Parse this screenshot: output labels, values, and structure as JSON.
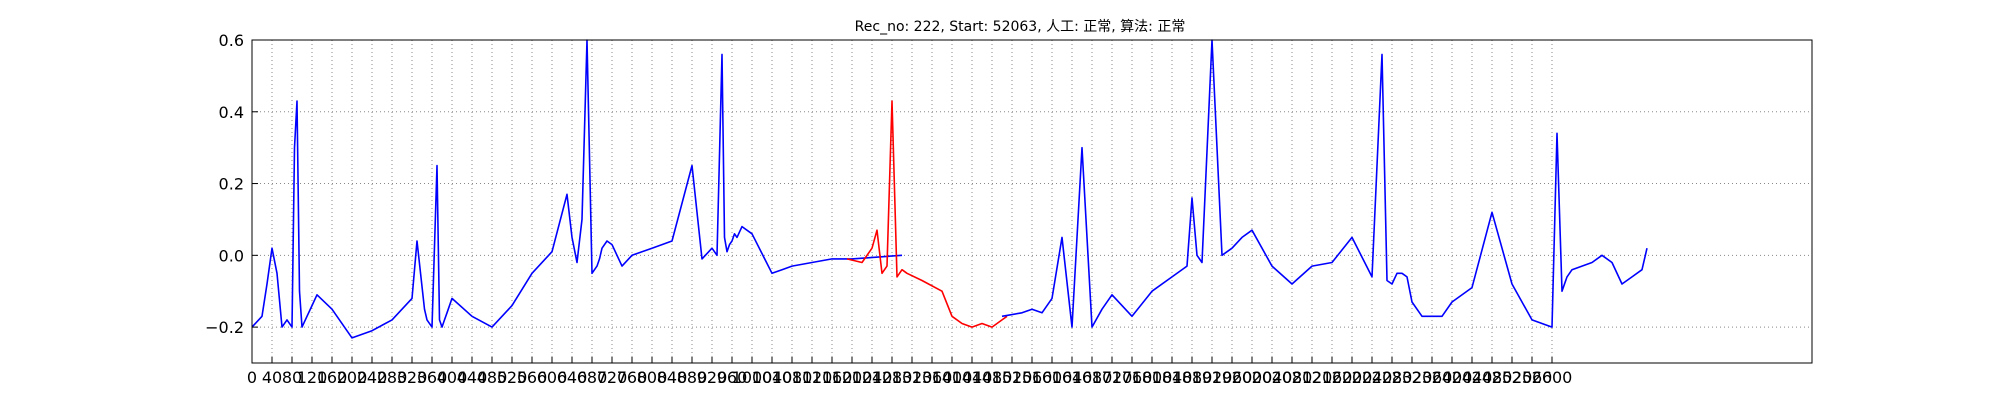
{
  "chart_data": {
    "type": "line",
    "title": "Rec_no: 222, Start: 52063, 人工: 正常, 算法: 正常",
    "xlabel": "",
    "ylabel": "",
    "xlim": [
      0,
      3120
    ],
    "ylim": [
      -0.3,
      0.6
    ],
    "grid": true,
    "grid_style": "dotted",
    "yticks": [
      -0.2,
      0.0,
      0.2,
      0.4,
      0.6
    ],
    "ytick_labels": [
      "−0.2",
      "0.0",
      "0.2",
      "0.4",
      "0.6"
    ],
    "xticks": [
      0,
      40,
      80,
      120,
      160,
      200,
      240,
      280,
      320,
      360,
      400,
      440,
      480,
      520,
      560,
      600,
      640,
      680,
      720,
      760,
      800,
      840,
      880,
      920,
      960,
      1000,
      1040,
      1080,
      1120,
      1160,
      1200,
      1240,
      1280,
      1320,
      1360,
      1400,
      1440,
      1480,
      1520,
      1560,
      1600,
      1640,
      1680,
      1720,
      1760,
      1800,
      1840,
      1880,
      1920,
      1960,
      2000,
      2040,
      2080,
      2120,
      2160,
      2200,
      2240,
      2280,
      2320,
      2360,
      2400,
      2440,
      2480,
      2520,
      2560,
      2600
    ],
    "series": [
      {
        "color": "#0000ff",
        "x": [
          0,
          20,
          30,
          40,
          50,
          60,
          70,
          80,
          85,
          90,
          95,
          100,
          110,
          120,
          130,
          160,
          200,
          240,
          280,
          320,
          330,
          345,
          350,
          360,
          370,
          375,
          380,
          385,
          390,
          400,
          440,
          480,
          520,
          560,
          600,
          630,
          640,
          650,
          660,
          670,
          680,
          690,
          695,
          700,
          710,
          720,
          740,
          760,
          780,
          800,
          840,
          880,
          900,
          920,
          930,
          940,
          945,
          950,
          955,
          960,
          965,
          970,
          980,
          1000,
          1040,
          1060,
          1080,
          1120,
          1160,
          1200,
          1300
        ],
        "y": [
          -0.2,
          -0.17,
          -0.08,
          0.02,
          -0.05,
          -0.2,
          -0.18,
          -0.2,
          0.3,
          0.43,
          -0.1,
          -0.2,
          -0.17,
          -0.14,
          -0.11,
          -0.15,
          -0.23,
          -0.21,
          -0.18,
          -0.12,
          0.04,
          -0.15,
          -0.18,
          -0.2,
          0.25,
          -0.18,
          -0.2,
          -0.18,
          -0.16,
          -0.12,
          -0.17,
          -0.2,
          -0.14,
          -0.05,
          0.01,
          0.17,
          0.05,
          -0.02,
          0.1,
          0.6,
          -0.05,
          -0.03,
          -0.01,
          0.02,
          0.04,
          0.03,
          -0.03,
          0.0,
          0.01,
          0.02,
          0.04,
          0.25,
          -0.01,
          0.02,
          0.0,
          0.56,
          0.05,
          0.01,
          0.03,
          0.04,
          0.06,
          0.05,
          0.08,
          0.06,
          -0.05,
          -0.04,
          -0.03,
          -0.02,
          -0.01,
          -0.01,
          0.0
        ]
      },
      {
        "color": "#ff0000",
        "x": [
          1190,
          1220,
          1240,
          1250,
          1260,
          1270,
          1280,
          1290,
          1295,
          1300,
          1310,
          1340,
          1380,
          1400,
          1420,
          1440,
          1460,
          1480,
          1500,
          1510
        ],
        "y": [
          -0.01,
          -0.02,
          0.02,
          0.07,
          -0.05,
          -0.03,
          0.43,
          -0.06,
          -0.05,
          -0.04,
          -0.05,
          -0.07,
          -0.1,
          -0.17,
          -0.19,
          -0.2,
          -0.19,
          -0.2,
          -0.18,
          -0.17
        ]
      },
      {
        "color": "#0000ff",
        "x": [
          1500,
          1540,
          1560,
          1580,
          1600,
          1620,
          1640,
          1660,
          1680,
          1700,
          1720,
          1760,
          1800,
          1840,
          1870,
          1880,
          1890,
          1900,
          1920,
          1940,
          1960,
          1980,
          2000,
          2040,
          2080,
          2120,
          2160,
          2200,
          2240,
          2260,
          2270,
          2280,
          2290,
          2300,
          2310,
          2320,
          2340,
          2380,
          2400,
          2440,
          2480,
          2520,
          2560,
          2600,
          2610,
          2620,
          2630,
          2640,
          2660,
          2680,
          2700,
          2720,
          2740,
          2760,
          2780,
          2790
        ],
        "y": [
          -0.17,
          -0.16,
          -0.15,
          -0.16,
          -0.12,
          0.05,
          -0.2,
          0.3,
          -0.2,
          -0.15,
          -0.11,
          -0.17,
          -0.1,
          -0.06,
          -0.03,
          0.16,
          0.0,
          -0.02,
          0.6,
          0.0,
          0.02,
          0.05,
          0.07,
          -0.03,
          -0.08,
          -0.03,
          -0.02,
          0.05,
          -0.06,
          0.56,
          -0.07,
          -0.08,
          -0.05,
          -0.05,
          -0.06,
          -0.13,
          -0.17,
          -0.17,
          -0.13,
          -0.09,
          0.12,
          -0.08,
          -0.18,
          -0.2,
          0.34,
          -0.1,
          -0.06,
          -0.04,
          -0.03,
          -0.02,
          0.0,
          -0.02,
          -0.08,
          -0.06,
          -0.04,
          0.02
        ]
      }
    ]
  }
}
